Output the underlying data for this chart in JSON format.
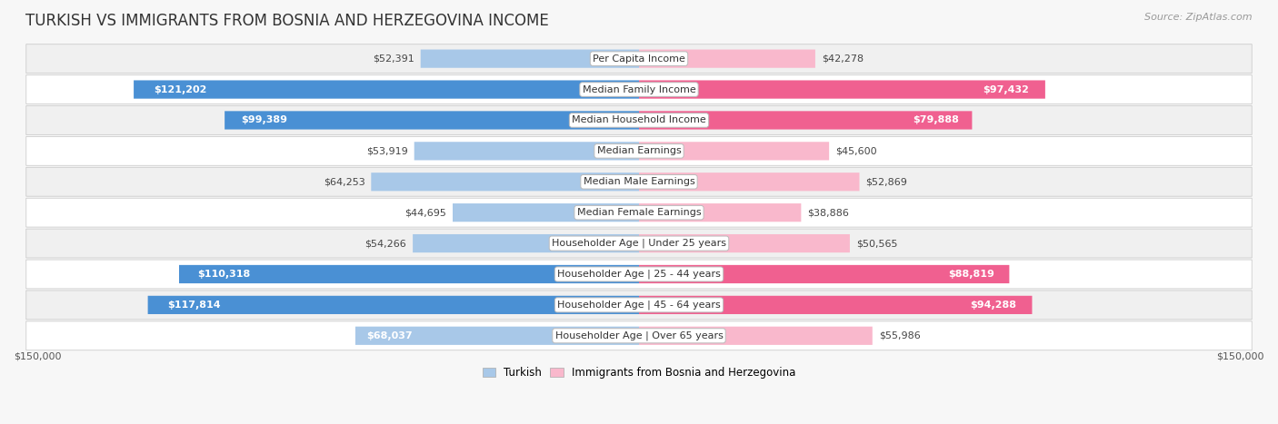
{
  "title": "TURKISH VS IMMIGRANTS FROM BOSNIA AND HERZEGOVINA INCOME",
  "source": "Source: ZipAtlas.com",
  "categories": [
    "Per Capita Income",
    "Median Family Income",
    "Median Household Income",
    "Median Earnings",
    "Median Male Earnings",
    "Median Female Earnings",
    "Householder Age | Under 25 years",
    "Householder Age | 25 - 44 years",
    "Householder Age | 45 - 64 years",
    "Householder Age | Over 65 years"
  ],
  "turkish_values": [
    52391,
    121202,
    99389,
    53919,
    64253,
    44695,
    54266,
    110318,
    117814,
    68037
  ],
  "bosnia_values": [
    42278,
    97432,
    79888,
    45600,
    52869,
    38886,
    50565,
    88819,
    94288,
    55986
  ],
  "turkish_labels": [
    "$52,391",
    "$121,202",
    "$99,389",
    "$53,919",
    "$64,253",
    "$44,695",
    "$54,266",
    "$110,318",
    "$117,814",
    "$68,037"
  ],
  "bosnia_labels": [
    "$42,278",
    "$97,432",
    "$79,888",
    "$45,600",
    "$52,869",
    "$38,886",
    "$50,565",
    "$88,819",
    "$94,288",
    "$55,986"
  ],
  "turkish_large": [
    false,
    true,
    true,
    false,
    false,
    false,
    false,
    true,
    true,
    false
  ],
  "bosnia_large": [
    false,
    true,
    true,
    false,
    false,
    false,
    false,
    true,
    true,
    false
  ],
  "max_value": 150000,
  "turkish_color_light": "#a8c8e8",
  "turkish_color_dark": "#4a90d4",
  "bosnia_color_light": "#f9b8cc",
  "bosnia_color_dark": "#f06090",
  "bar_height": 0.58,
  "background_color": "#f7f7f7",
  "row_colors": [
    "#f0f0f0",
    "#ffffff",
    "#f0f0f0",
    "#ffffff",
    "#f0f0f0",
    "#ffffff",
    "#f0f0f0",
    "#ffffff",
    "#f0f0f0",
    "#ffffff"
  ],
  "legend_turkish": "Turkish",
  "legend_bosnia": "Immigrants from Bosnia and Herzegovina",
  "xlabel_left": "$150,000",
  "xlabel_right": "$150,000",
  "title_fontsize": 12,
  "label_fontsize": 8,
  "category_fontsize": 8,
  "source_fontsize": 8,
  "inside_threshold": 65000
}
